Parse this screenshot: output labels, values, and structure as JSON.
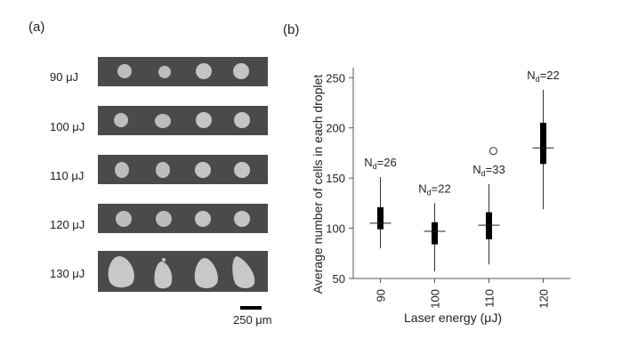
{
  "panel_a": {
    "label": "(a)",
    "rows": [
      {
        "energy": "90 μJ"
      },
      {
        "energy": "100 μJ"
      },
      {
        "energy": "110 μJ"
      },
      {
        "energy": "120 μJ"
      },
      {
        "energy": "130 μJ"
      }
    ],
    "scale_label": "250 μm"
  },
  "chart_data": {
    "type": "box",
    "panel_label": "(b)",
    "xlabel": "Laser energy (μJ)",
    "ylabel": "Average number of cells in each droplet",
    "categories": [
      "90",
      "100",
      "110",
      "120"
    ],
    "ylim": [
      50,
      260
    ],
    "yticks": [
      50,
      100,
      150,
      200,
      250
    ],
    "boxes": [
      {
        "category": "90",
        "whisker_low": 80,
        "q1": 99,
        "median": 105,
        "q3": 121,
        "whisker_high": 151,
        "outliers": [],
        "annotation_text": "N",
        "annotation_sub": "d",
        "annotation_value": "=26"
      },
      {
        "category": "100",
        "whisker_low": 57,
        "q1": 84,
        "median": 97,
        "q3": 106,
        "whisker_high": 125,
        "outliers": [],
        "annotation_text": "N",
        "annotation_sub": "d",
        "annotation_value": "=22"
      },
      {
        "category": "110",
        "whisker_low": 64,
        "q1": 89,
        "median": 103,
        "q3": 116,
        "whisker_high": 144,
        "outliers": [
          177
        ],
        "annotation_text": "N",
        "annotation_sub": "d",
        "annotation_value": "=33"
      },
      {
        "category": "120",
        "whisker_low": 119,
        "q1": 164,
        "median": 180,
        "q3": 205,
        "whisker_high": 238,
        "outliers": [],
        "annotation_text": "N",
        "annotation_sub": "d",
        "annotation_value": "=22"
      }
    ]
  }
}
